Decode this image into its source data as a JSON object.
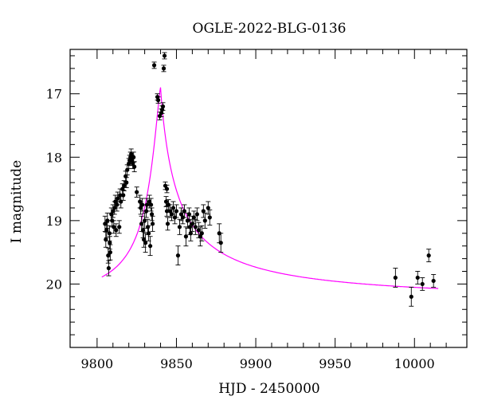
{
  "chart_data": {
    "type": "scatter",
    "title": "OGLE-2022-BLG-0136",
    "xlabel": "HJD - 2450000",
    "ylabel": "I magnitude",
    "xlim": [
      9783,
      10033
    ],
    "ylim": [
      21.0,
      16.3
    ],
    "y_inverted": true,
    "grid": false,
    "x_ticks": [
      9800,
      9850,
      9900,
      9950,
      10000
    ],
    "y_ticks": [
      17,
      18,
      19,
      20
    ],
    "colors": {
      "data": "#000000",
      "model": "#ff00ff",
      "frame": "#000000"
    },
    "series": [
      {
        "kind": "points_with_errorbars",
        "points": [
          [
            9805,
            19.05,
            0.12
          ],
          [
            9805.5,
            19.3,
            0.12
          ],
          [
            9806,
            19.15,
            0.12
          ],
          [
            9806.5,
            19.0,
            0.12
          ],
          [
            9807,
            19.55,
            0.12
          ],
          [
            9807.3,
            19.75,
            0.12
          ],
          [
            9807.8,
            19.2,
            0.12
          ],
          [
            9808,
            19.35,
            0.1
          ],
          [
            9808.3,
            19.5,
            0.12
          ],
          [
            9809,
            18.9,
            0.1
          ],
          [
            9809.5,
            19.0,
            0.1
          ],
          [
            9810,
            18.85,
            0.1
          ],
          [
            9810.5,
            19.1,
            0.1
          ],
          [
            9811,
            18.8,
            0.1
          ],
          [
            9811.5,
            18.7,
            0.1
          ],
          [
            9812,
            19.15,
            0.1
          ],
          [
            9812.5,
            18.75,
            0.1
          ],
          [
            9813,
            18.65,
            0.1
          ],
          [
            9814,
            19.1,
            0.1
          ],
          [
            9814.5,
            18.6,
            0.1
          ],
          [
            9815,
            18.7,
            0.1
          ],
          [
            9816,
            18.5,
            0.08
          ],
          [
            9816.5,
            18.6,
            0.08
          ],
          [
            9817,
            18.45,
            0.08
          ],
          [
            9818,
            18.3,
            0.08
          ],
          [
            9818.5,
            18.4,
            0.08
          ],
          [
            9819,
            18.2,
            0.08
          ],
          [
            9820,
            18.1,
            0.08
          ],
          [
            9820.5,
            18.05,
            0.08
          ],
          [
            9821,
            18.0,
            0.08
          ],
          [
            9821.5,
            17.95,
            0.08
          ],
          [
            9822,
            18.05,
            0.08
          ],
          [
            9822.5,
            18.1,
            0.08
          ],
          [
            9823,
            18.0,
            0.08
          ],
          [
            9823.5,
            18.15,
            0.08
          ],
          [
            9825,
            18.55,
            0.08
          ],
          [
            9827,
            18.7,
            0.1
          ],
          [
            9827.5,
            18.8,
            0.1
          ],
          [
            9828,
            19.05,
            0.12
          ],
          [
            9828.5,
            18.75,
            0.1
          ],
          [
            9829,
            19.15,
            0.12
          ],
          [
            9829.5,
            19.3,
            0.12
          ],
          [
            9830,
            19.0,
            0.12
          ],
          [
            9830.5,
            19.35,
            0.15
          ],
          [
            9831,
            18.85,
            0.1
          ],
          [
            9831.5,
            18.75,
            0.1
          ],
          [
            9832,
            19.1,
            0.12
          ],
          [
            9832.5,
            19.2,
            0.12
          ],
          [
            9833,
            18.7,
            0.1
          ],
          [
            9833.5,
            19.4,
            0.15
          ],
          [
            9834,
            18.75,
            0.1
          ],
          [
            9834.5,
            18.9,
            0.1
          ],
          [
            9835,
            19.05,
            0.12
          ],
          [
            9836,
            16.55,
            0.05
          ],
          [
            9838,
            17.05,
            0.05
          ],
          [
            9838.5,
            17.1,
            0.05
          ],
          [
            9839.5,
            17.35,
            0.06
          ],
          [
            9840.5,
            17.3,
            0.06
          ],
          [
            9841,
            17.25,
            0.06
          ],
          [
            9841.5,
            17.2,
            0.06
          ],
          [
            9842,
            16.6,
            0.05
          ],
          [
            9842.5,
            16.4,
            0.05
          ],
          [
            9843,
            18.45,
            0.06
          ],
          [
            9844,
            18.5,
            0.06
          ],
          [
            9843.5,
            18.7,
            0.08
          ],
          [
            9844,
            18.85,
            0.08
          ],
          [
            9844.5,
            19.05,
            0.1
          ],
          [
            9845,
            18.75,
            0.08
          ],
          [
            9846,
            18.85,
            0.1
          ],
          [
            9847,
            18.9,
            0.1
          ],
          [
            9848,
            18.8,
            0.1
          ],
          [
            9849,
            18.95,
            0.1
          ],
          [
            9850,
            18.85,
            0.1
          ],
          [
            9851,
            19.55,
            0.15
          ],
          [
            9852,
            19.1,
            0.12
          ],
          [
            9853,
            18.9,
            0.1
          ],
          [
            9854,
            18.95,
            0.1
          ],
          [
            9855,
            18.85,
            0.1
          ],
          [
            9856,
            19.25,
            0.15
          ],
          [
            9857,
            19.0,
            0.12
          ],
          [
            9858,
            18.9,
            0.1
          ],
          [
            9858.5,
            19.1,
            0.12
          ],
          [
            9859,
            19.2,
            0.12
          ],
          [
            9860,
            19.05,
            0.12
          ],
          [
            9861,
            18.95,
            0.1
          ],
          [
            9862,
            19.1,
            0.12
          ],
          [
            9863,
            18.9,
            0.1
          ],
          [
            9864,
            19.15,
            0.12
          ],
          [
            9865,
            19.25,
            0.15
          ],
          [
            9866,
            19.2,
            0.12
          ],
          [
            9867,
            18.85,
            0.1
          ],
          [
            9868,
            19.0,
            0.12
          ],
          [
            9870,
            18.8,
            0.1
          ],
          [
            9871,
            18.95,
            0.12
          ],
          [
            9877,
            19.2,
            0.15
          ],
          [
            9878,
            19.35,
            0.15
          ],
          [
            9988,
            19.9,
            0.15
          ],
          [
            9998,
            20.2,
            0.15
          ],
          [
            10002,
            19.9,
            0.1
          ],
          [
            10005,
            20.0,
            0.1
          ],
          [
            10009,
            19.55,
            0.1
          ],
          [
            10012,
            19.95,
            0.1
          ]
        ]
      },
      {
        "kind": "model_curve",
        "peak_t": 9840,
        "peak_mag": 16.9,
        "base_mag": 20.3,
        "t_start": 9803,
        "t_end": 10015
      }
    ]
  }
}
